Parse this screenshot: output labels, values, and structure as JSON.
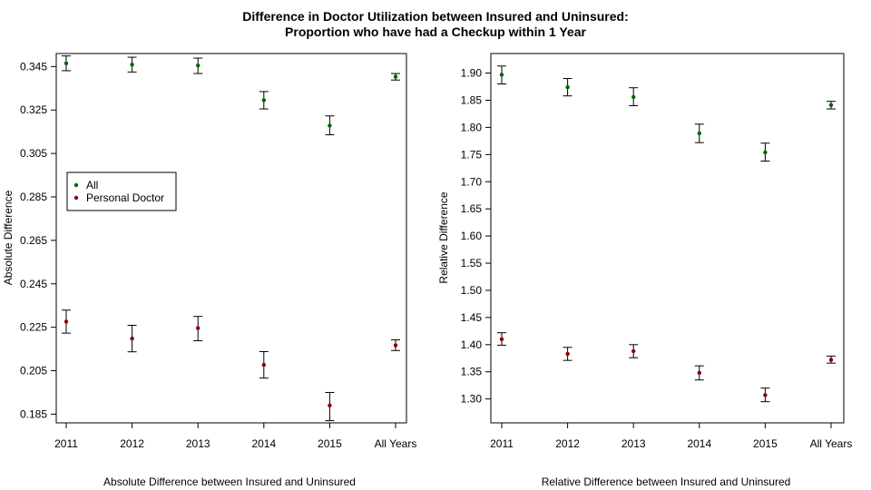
{
  "figure": {
    "title_line1": "Difference in Doctor Utilization between Insured and Uninsured:",
    "title_line2": "Proportion who have had a Checkup within 1 Year"
  },
  "colors": {
    "all": "#006400",
    "personal_doctor": "#8b0000",
    "axis": "#000000"
  },
  "chart_data": [
    {
      "type": "scatter",
      "title": "",
      "xlabel": "Absolute Difference between Insured and Uninsured",
      "ylabel": "Absolute Difference",
      "categories": [
        "2011",
        "2012",
        "2013",
        "2014",
        "2015",
        "All Years"
      ],
      "ylim": [
        0.181,
        0.351
      ],
      "yticks": [
        0.185,
        0.205,
        0.225,
        0.245,
        0.265,
        0.285,
        0.305,
        0.325,
        0.345
      ],
      "ytick_labels": [
        "0.185",
        "0.205",
        "0.225",
        "0.245",
        "0.265",
        "0.285",
        "0.305",
        "0.325",
        "0.345"
      ],
      "legend": {
        "placement": "middle-left",
        "entries": [
          "All",
          "Personal Doctor"
        ]
      },
      "series": [
        {
          "name": "All",
          "color": "#006400",
          "values": [
            0.3465,
            0.3459,
            0.3455,
            0.3295,
            0.3178,
            0.3403
          ],
          "lower": [
            0.3431,
            0.3425,
            0.3418,
            0.3255,
            0.3136,
            0.3388
          ],
          "upper": [
            0.3499,
            0.3493,
            0.3489,
            0.3335,
            0.3223,
            0.3418
          ]
        },
        {
          "name": "Personal Doctor",
          "color": "#8b0000",
          "values": [
            0.2276,
            0.2198,
            0.2246,
            0.2077,
            0.189,
            0.2167
          ],
          "lower": [
            0.2223,
            0.2137,
            0.2188,
            0.2016,
            0.182,
            0.2143
          ],
          "upper": [
            0.2329,
            0.2259,
            0.23,
            0.2138,
            0.195,
            0.2192
          ]
        }
      ]
    },
    {
      "type": "scatter",
      "title": "",
      "xlabel": "Relative Difference between Insured and Uninsured",
      "ylabel": "Relative Difference",
      "categories": [
        "2011",
        "2012",
        "2013",
        "2014",
        "2015",
        "All Years"
      ],
      "ylim": [
        1.256,
        1.936
      ],
      "yticks": [
        1.3,
        1.35,
        1.4,
        1.45,
        1.5,
        1.55,
        1.6,
        1.65,
        1.7,
        1.75,
        1.8,
        1.85,
        1.9
      ],
      "ytick_labels": [
        "1.30",
        "1.35",
        "1.40",
        "1.45",
        "1.50",
        "1.55",
        "1.60",
        "1.65",
        "1.70",
        "1.75",
        "1.80",
        "1.85",
        "1.90"
      ],
      "series": [
        {
          "name": "All",
          "color": "#006400",
          "values": [
            1.897,
            1.874,
            1.856,
            1.789,
            1.754,
            1.841
          ],
          "lower": [
            1.88,
            1.858,
            1.84,
            1.772,
            1.738,
            1.834
          ],
          "upper": [
            1.913,
            1.89,
            1.873,
            1.806,
            1.771,
            1.848
          ]
        },
        {
          "name": "Personal Doctor",
          "color": "#8b0000",
          "values": [
            1.41,
            1.383,
            1.388,
            1.348,
            1.307,
            1.372
          ],
          "lower": [
            1.399,
            1.371,
            1.376,
            1.335,
            1.295,
            1.366
          ],
          "upper": [
            1.422,
            1.395,
            1.4,
            1.361,
            1.32,
            1.379
          ]
        }
      ]
    }
  ]
}
